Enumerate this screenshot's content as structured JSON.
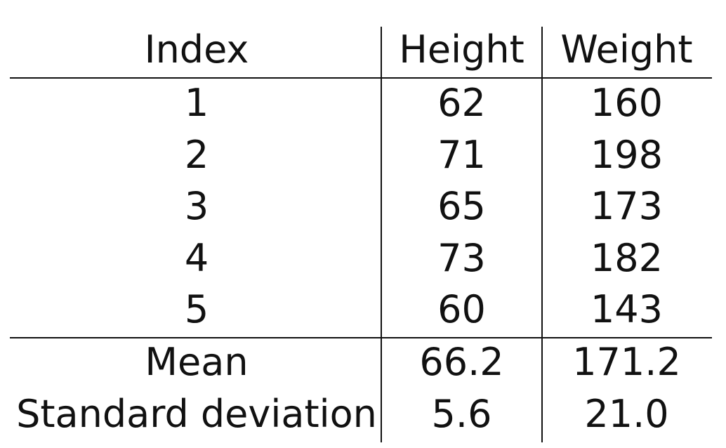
{
  "chart_data": {
    "type": "table",
    "columns": [
      "Index",
      "Height",
      "Weight"
    ],
    "rows": [
      [
        "1",
        "62",
        "160"
      ],
      [
        "2",
        "71",
        "198"
      ],
      [
        "3",
        "65",
        "173"
      ],
      [
        "4",
        "73",
        "182"
      ],
      [
        "5",
        "60",
        "143"
      ]
    ],
    "summary": [
      [
        "Mean",
        "66.2",
        "171.2"
      ],
      [
        "Standard deviation",
        "5.6",
        "21.0"
      ]
    ]
  }
}
